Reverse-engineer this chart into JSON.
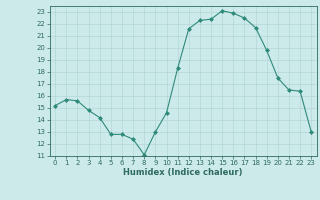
{
  "x": [
    0,
    1,
    2,
    3,
    4,
    5,
    6,
    7,
    8,
    9,
    10,
    11,
    12,
    13,
    14,
    15,
    16,
    17,
    18,
    19,
    20,
    21,
    22,
    23
  ],
  "y": [
    15.2,
    15.7,
    15.6,
    14.8,
    14.2,
    12.8,
    12.8,
    12.4,
    11.1,
    13.0,
    14.6,
    18.3,
    21.6,
    22.3,
    22.4,
    23.1,
    22.9,
    22.5,
    21.7,
    19.8,
    17.5,
    16.5,
    16.4,
    13.0
  ],
  "line_color": "#2e8b77",
  "marker": "D",
  "marker_size": 2.0,
  "bg_color": "#cdeaea",
  "grid_color": "#b5d5d5",
  "xlabel": "Humidex (Indice chaleur)",
  "ylim": [
    11,
    23.5
  ],
  "xlim": [
    -0.5,
    23.5
  ],
  "yticks": [
    11,
    12,
    13,
    14,
    15,
    16,
    17,
    18,
    19,
    20,
    21,
    22,
    23
  ],
  "xticks": [
    0,
    1,
    2,
    3,
    4,
    5,
    6,
    7,
    8,
    9,
    10,
    11,
    12,
    13,
    14,
    15,
    16,
    17,
    18,
    19,
    20,
    21,
    22,
    23
  ],
  "tick_color": "#2e6b5e",
  "font_color": "#2e6b5e"
}
